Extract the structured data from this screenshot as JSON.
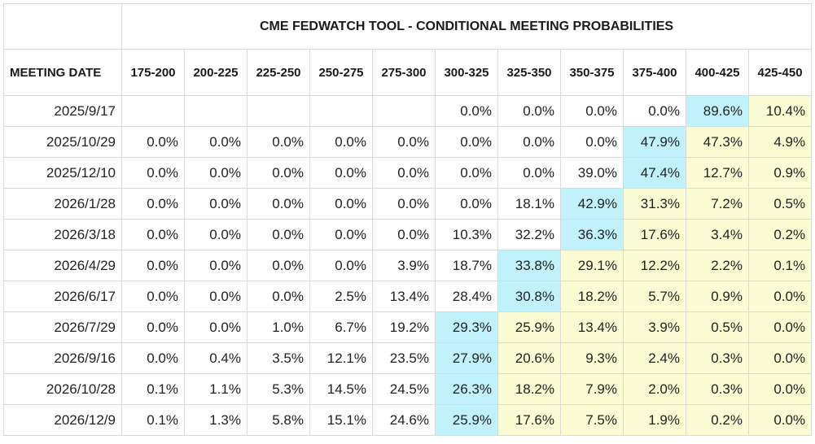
{
  "title": "CME FEDWATCH TOOL - CONDITIONAL MEETING PROBABILITIES",
  "date_header": "MEETING DATE",
  "columns": [
    "175-200",
    "200-225",
    "225-250",
    "250-275",
    "275-300",
    "300-325",
    "325-350",
    "350-375",
    "375-400",
    "400-425",
    "425-450"
  ],
  "colors": {
    "max_highlight": "#c1f2fb",
    "above_max_highlight": "#fbfbd4"
  },
  "rows": [
    {
      "date": "2025/9/17",
      "values": [
        "",
        "",
        "",
        "",
        "",
        "0.0%",
        "0.0%",
        "0.0%",
        "0.0%",
        "89.6%",
        "10.4%"
      ]
    },
    {
      "date": "2025/10/29",
      "values": [
        "0.0%",
        "0.0%",
        "0.0%",
        "0.0%",
        "0.0%",
        "0.0%",
        "0.0%",
        "0.0%",
        "47.9%",
        "47.3%",
        "4.9%"
      ]
    },
    {
      "date": "2025/12/10",
      "values": [
        "0.0%",
        "0.0%",
        "0.0%",
        "0.0%",
        "0.0%",
        "0.0%",
        "0.0%",
        "39.0%",
        "47.4%",
        "12.7%",
        "0.9%"
      ]
    },
    {
      "date": "2026/1/28",
      "values": [
        "0.0%",
        "0.0%",
        "0.0%",
        "0.0%",
        "0.0%",
        "0.0%",
        "18.1%",
        "42.9%",
        "31.3%",
        "7.2%",
        "0.5%"
      ]
    },
    {
      "date": "2026/3/18",
      "values": [
        "0.0%",
        "0.0%",
        "0.0%",
        "0.0%",
        "0.0%",
        "10.3%",
        "32.2%",
        "36.3%",
        "17.6%",
        "3.4%",
        "0.2%"
      ]
    },
    {
      "date": "2026/4/29",
      "values": [
        "0.0%",
        "0.0%",
        "0.0%",
        "0.0%",
        "3.9%",
        "18.7%",
        "33.8%",
        "29.1%",
        "12.2%",
        "2.2%",
        "0.1%"
      ]
    },
    {
      "date": "2026/6/17",
      "values": [
        "0.0%",
        "0.0%",
        "0.0%",
        "2.5%",
        "13.4%",
        "28.4%",
        "30.8%",
        "18.2%",
        "5.7%",
        "0.9%",
        "0.0%"
      ]
    },
    {
      "date": "2026/7/29",
      "values": [
        "0.0%",
        "0.0%",
        "1.0%",
        "6.7%",
        "19.2%",
        "29.3%",
        "25.9%",
        "13.4%",
        "3.9%",
        "0.5%",
        "0.0%"
      ]
    },
    {
      "date": "2026/9/16",
      "values": [
        "0.0%",
        "0.4%",
        "3.5%",
        "12.1%",
        "23.5%",
        "27.9%",
        "20.6%",
        "9.3%",
        "2.4%",
        "0.3%",
        "0.0%"
      ]
    },
    {
      "date": "2026/10/28",
      "values": [
        "0.1%",
        "1.1%",
        "5.3%",
        "14.5%",
        "24.5%",
        "26.3%",
        "18.2%",
        "7.9%",
        "2.0%",
        "0.3%",
        "0.0%"
      ]
    },
    {
      "date": "2026/12/9",
      "values": [
        "0.1%",
        "1.3%",
        "5.8%",
        "15.1%",
        "24.6%",
        "25.9%",
        "17.6%",
        "7.5%",
        "1.9%",
        "0.2%",
        "0.0%"
      ]
    }
  ],
  "highlights": [
    {
      "max_col": 9
    },
    {
      "max_col": 8
    },
    {
      "max_col": 8
    },
    {
      "max_col": 7
    },
    {
      "max_col": 7
    },
    {
      "max_col": 6
    },
    {
      "max_col": 6
    },
    {
      "max_col": 5
    },
    {
      "max_col": 5
    },
    {
      "max_col": 5
    },
    {
      "max_col": 5
    }
  ]
}
